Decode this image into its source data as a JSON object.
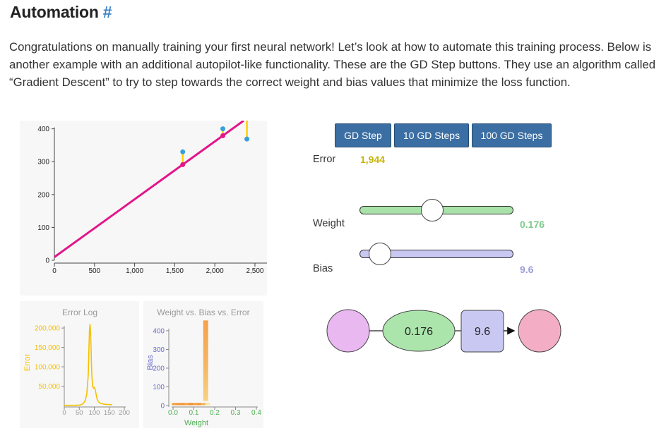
{
  "section": {
    "title": "Automation",
    "anchor": "#",
    "intro": "Congratulations on manually training your first neural network! Let’s look at how to automate this training process. Below is another example with an additional autopilot-like functionality. These are the GD Step buttons. They use an algorithm called “Gradient Descent” to try to step towards the correct weight and bias values that minimize the loss function."
  },
  "controls": {
    "buttons": [
      "GD Step",
      "10 GD Steps",
      "100 GD Steps"
    ],
    "error_label": "Error",
    "error_value": "1,944",
    "weight_label": "Weight",
    "weight_value": "0.176",
    "bias_label": "Bias",
    "bias_value": "9.6",
    "weight_slider_fraction": 0.45,
    "bias_slider_fraction": 0.05
  },
  "network": {
    "weight_node": "0.176",
    "bias_node": "9.6",
    "colors": {
      "input": "#e9b8f1",
      "weight": "#ace5ac",
      "bias": "#c9c8f2",
      "output": "#f3aec5"
    }
  },
  "colors": {
    "button": "#3b6ea2",
    "error": "#c8b400",
    "weight": "#7dc98a",
    "bias": "#9b9bdb",
    "line": "#e2168a",
    "prediction": "#e2168a",
    "actual": "#3aa0d8",
    "residual": "#ffd000",
    "error_log": "#f5c000"
  },
  "chart_data": [
    {
      "type": "scatter",
      "x_ticks": [
        "0",
        "500",
        "1,000",
        "1,500",
        "2,000",
        "2,500"
      ],
      "y_ticks": [
        "0",
        "100",
        "200",
        "300",
        "400"
      ],
      "xlim": [
        0,
        2650
      ],
      "ylim": [
        0,
        425
      ],
      "model_line": {
        "slope": 0.176,
        "intercept": 9.6
      },
      "points": [
        {
          "x": 1600,
          "actual": 330,
          "predicted": 291
        },
        {
          "x": 2100,
          "actual": 400,
          "predicted": 379
        },
        {
          "x": 2400,
          "actual": 369,
          "predicted": 432
        }
      ]
    },
    {
      "type": "line",
      "title": "Error Log",
      "ylabel": "Error",
      "x_ticks": [
        "0",
        "50",
        "100",
        "150",
        "200"
      ],
      "y_ticks": [
        "50,000",
        "100,000",
        "150,000",
        "200,000"
      ],
      "xlim": [
        0,
        200
      ],
      "ylim": [
        0,
        222000
      ],
      "x": [
        0,
        20,
        40,
        50,
        55,
        60,
        65,
        70,
        75,
        80,
        82,
        84,
        86,
        88,
        90,
        92,
        95,
        98,
        101,
        104,
        107,
        110,
        115,
        120,
        130,
        140,
        150,
        160
      ],
      "y": [
        500,
        600,
        800,
        1200,
        1800,
        3500,
        7000,
        14000,
        30000,
        80000,
        140000,
        195000,
        210000,
        185000,
        120000,
        75000,
        48000,
        45000,
        47000,
        38000,
        25000,
        15000,
        9000,
        6000,
        4000,
        3000,
        2500,
        2000
      ]
    },
    {
      "type": "heatmap",
      "title": "Weight vs. Bias vs. Error",
      "xlabel": "Weight",
      "ylabel": "Bias",
      "x_ticks": [
        "0.0",
        "0.1",
        "0.2",
        "0.3",
        "0.4"
      ],
      "y_ticks": [
        "0",
        "100",
        "200",
        "300",
        "400"
      ],
      "xlim": [
        0,
        0.4
      ],
      "ylim": [
        0,
        460
      ],
      "cells": [
        {
          "w": 0.005,
          "b": 2,
          "c": "#f2a23c"
        },
        {
          "w": 0.025,
          "b": 2,
          "c": "#f29a3a"
        },
        {
          "w": 0.045,
          "b": 2,
          "c": "#f29338"
        },
        {
          "w": 0.065,
          "b": 2,
          "c": "#f3a43f"
        },
        {
          "w": 0.085,
          "b": 2,
          "c": "#f18d36"
        },
        {
          "w": 0.105,
          "b": 2,
          "c": "#f3a241"
        },
        {
          "w": 0.125,
          "b": 2,
          "c": "#f09a3b"
        },
        {
          "w": 0.145,
          "b": 2,
          "c": "#f4b35a"
        },
        {
          "w": 0.165,
          "b": 2,
          "c": "#fbe6a1"
        }
      ],
      "column": {
        "w": 0.155,
        "b_min": 25,
        "b_max": 455,
        "c_top": "#f7a149",
        "c_bottom": "#f7d282"
      }
    }
  ]
}
